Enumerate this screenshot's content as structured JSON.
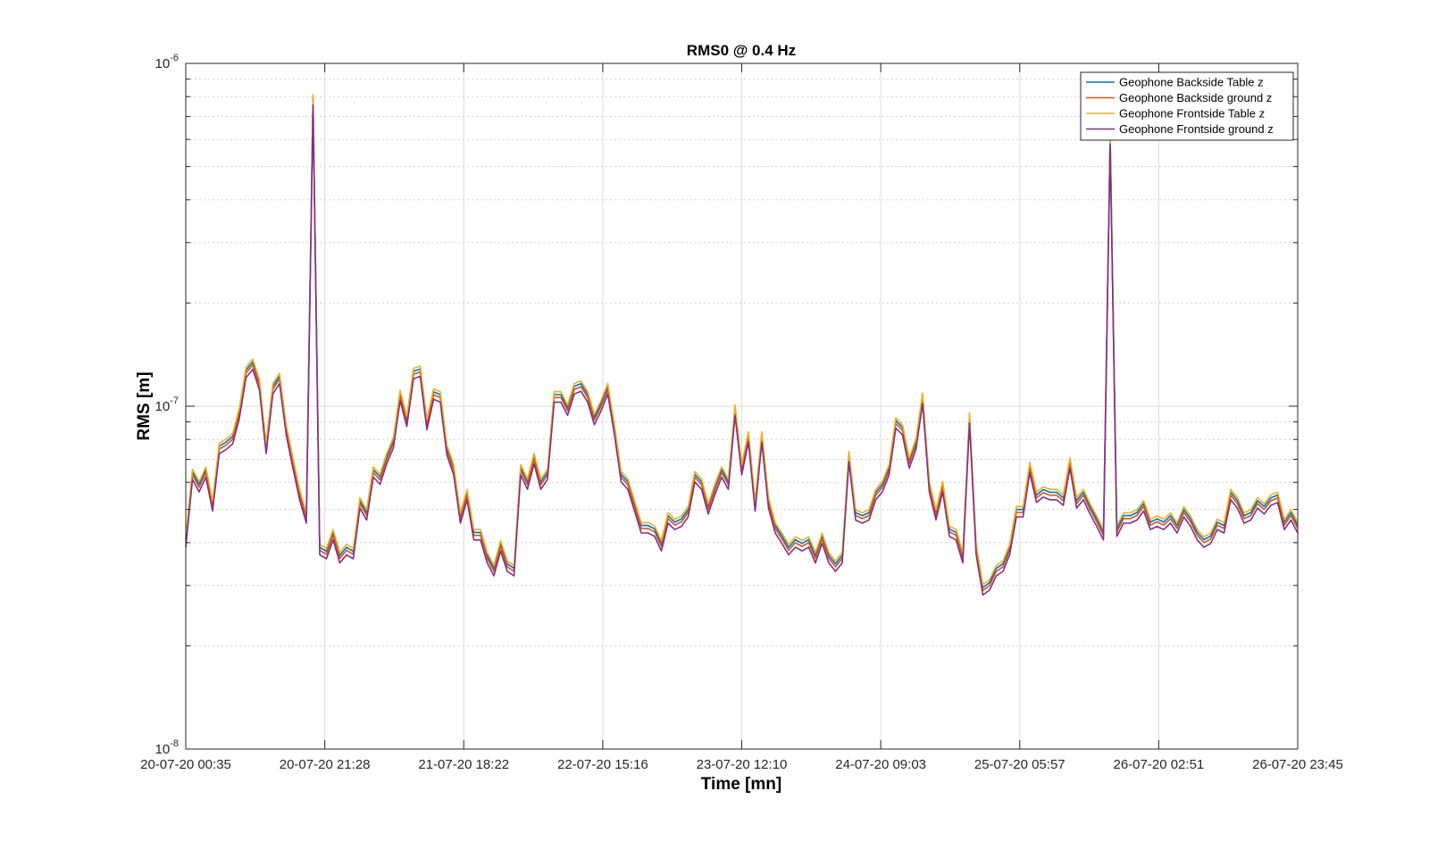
{
  "chart_data": {
    "type": "line",
    "title": "RMS0 @ 0.4 Hz",
    "xlabel": "Time [mn]",
    "ylabel": "RMS [m]",
    "yscale": "log",
    "ylim": [
      1e-08,
      1e-06
    ],
    "ytick_labels": [
      {
        "base": "10",
        "exp": "-8"
      },
      {
        "base": "10",
        "exp": "-7"
      },
      {
        "base": "10",
        "exp": "-6"
      }
    ],
    "xtick_labels": [
      "20-07-20 00:35",
      "20-07-20 21:28",
      "21-07-20 18:22",
      "22-07-20 15:16",
      "23-07-20 12:10",
      "24-07-20 09:03",
      "25-07-20 05:57",
      "26-07-20 02:51",
      "26-07-20 23:45"
    ],
    "grid": true,
    "legend_position": "top-right",
    "colors": [
      "#0072BD",
      "#D95319",
      "#EDB120",
      "#7E2F8E"
    ],
    "series_names": [
      "Geophone Backside Table z",
      "Geophone Backside ground z",
      "Geophone Frontside Table z",
      "Geophone Frontside ground z"
    ],
    "base_values_e8": [
      4.0,
      6.3,
      5.8,
      6.4,
      5.1,
      7.5,
      7.7,
      8.0,
      9.5,
      12.5,
      13.2,
      11.5,
      7.5,
      11.2,
      12.0,
      8.5,
      6.8,
      5.5,
      4.7,
      78.0,
      3.8,
      3.7,
      4.2,
      3.6,
      3.8,
      3.7,
      5.2,
      4.8,
      6.4,
      6.1,
      7.0,
      7.8,
      10.7,
      9.0,
      12.4,
      12.6,
      8.8,
      10.8,
      10.6,
      7.4,
      6.5,
      4.7,
      5.5,
      4.2,
      4.2,
      3.6,
      3.3,
      3.9,
      3.4,
      3.3,
      6.5,
      5.9,
      7.0,
      5.9,
      6.3,
      10.6,
      10.6,
      9.7,
      11.2,
      11.4,
      10.6,
      9.1,
      10.0,
      11.2,
      8.5,
      6.2,
      5.9,
      5.1,
      4.4,
      4.4,
      4.3,
      3.9,
      4.7,
      4.5,
      4.6,
      4.9,
      6.2,
      5.9,
      5.0,
      5.7,
      6.4,
      5.9,
      9.7,
      6.5,
      8.1,
      5.1,
      8.1,
      5.2,
      4.4,
      4.1,
      3.8,
      4.0,
      3.9,
      4.0,
      3.6,
      4.1,
      3.6,
      3.4,
      3.6,
      7.1,
      4.8,
      4.7,
      4.8,
      5.5,
      5.8,
      6.5,
      8.9,
      8.5,
      6.8,
      7.7,
      10.5,
      5.8,
      4.8,
      5.8,
      4.3,
      4.2,
      3.6,
      9.2,
      3.8,
      2.9,
      3.0,
      3.3,
      3.4,
      3.8,
      4.9,
      4.9,
      6.6,
      5.4,
      5.6,
      5.5,
      5.5,
      5.3,
      6.8,
      5.2,
      5.5,
      5.0,
      4.6,
      4.2,
      60.0,
      4.3,
      4.7,
      4.7,
      4.8,
      5.1,
      4.5,
      4.6,
      4.5,
      4.7,
      4.4,
      4.9,
      4.6,
      4.2,
      4.0,
      4.1,
      4.5,
      4.4,
      5.5,
      5.2,
      4.7,
      4.8,
      5.2,
      5.0,
      5.3,
      5.4,
      4.5,
      4.8,
      4.4
    ],
    "series_offsets": [
      {
        "name": "Geophone Backside Table z",
        "factor": 1.02
      },
      {
        "name": "Geophone Backside ground z",
        "factor": 1.0
      },
      {
        "name": "Geophone Frontside Table z",
        "factor": 1.04
      },
      {
        "name": "Geophone Frontside ground z",
        "factor": 0.97
      }
    ]
  }
}
